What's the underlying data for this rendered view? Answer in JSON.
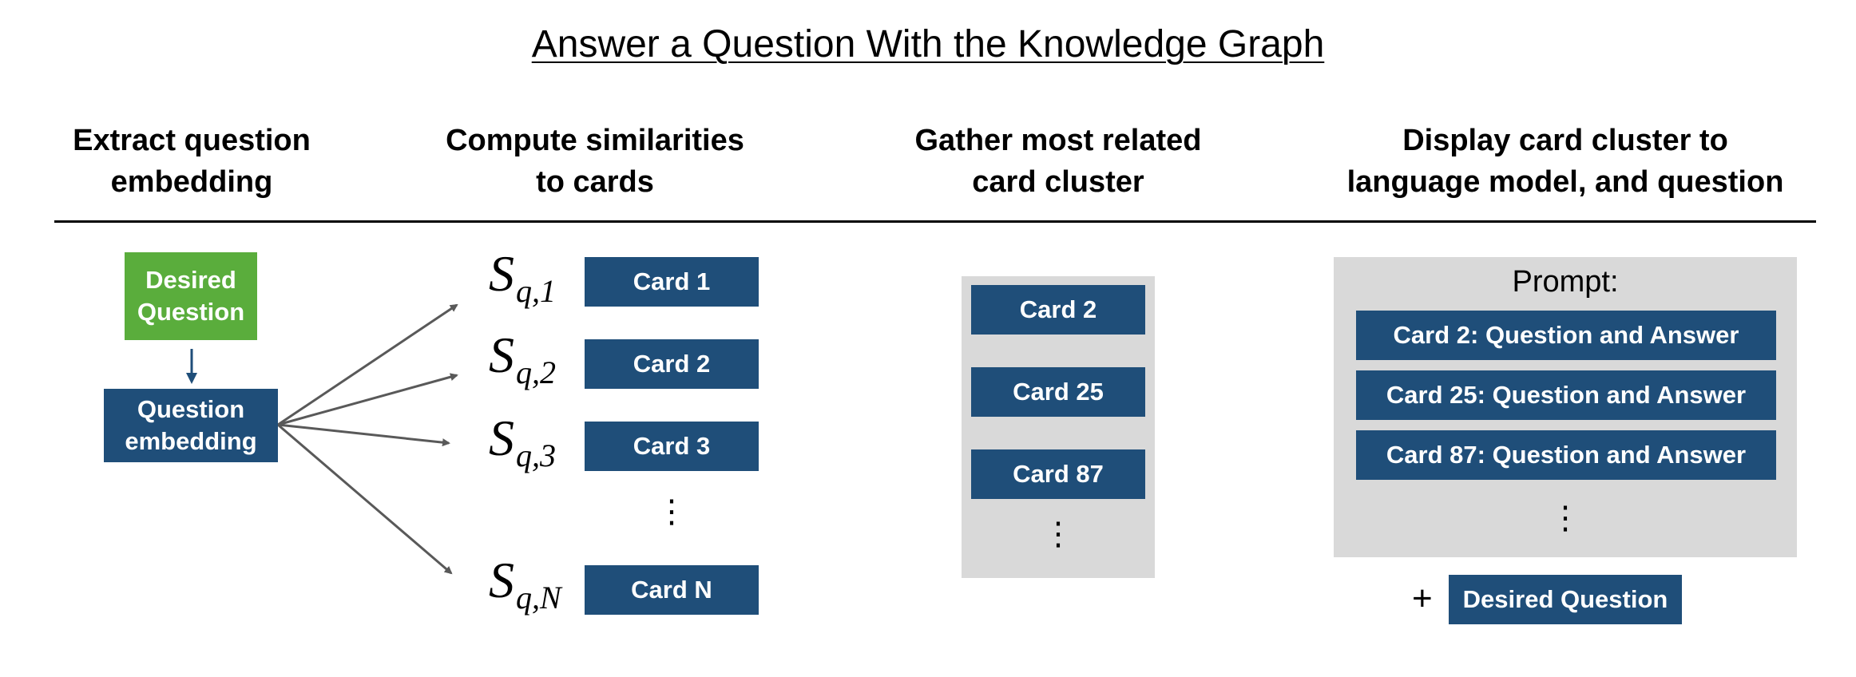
{
  "title": "Answer a Question With the Knowledge Graph",
  "columns": [
    {
      "line1": "Extract question",
      "line2": "embedding"
    },
    {
      "line1": "Compute similarities",
      "line2": "to cards"
    },
    {
      "line1": "Gather most related",
      "line2": "card cluster"
    },
    {
      "line1": "Display card cluster to",
      "line2": "language model, and question"
    }
  ],
  "step1": {
    "desired_line1": "Desired",
    "desired_line2": "Question",
    "embedding_line1": "Question",
    "embedding_line2": "embedding"
  },
  "step2": {
    "similarities": [
      {
        "symbol": "S",
        "subscript": "q,1",
        "card": "Card 1"
      },
      {
        "symbol": "S",
        "subscript": "q,2",
        "card": "Card 2"
      },
      {
        "symbol": "S",
        "subscript": "q,3",
        "card": "Card 3"
      },
      {
        "symbol": "S",
        "subscript": "q,N",
        "card": "Card N"
      }
    ]
  },
  "step3": {
    "cluster": [
      "Card 2",
      "Card 25",
      "Card 87"
    ]
  },
  "step4": {
    "prompt_label": "Prompt:",
    "items": [
      "Card 2: Question and Answer",
      "Card 25: Question and Answer",
      "Card 87: Question and Answer"
    ],
    "plus": "+",
    "question": "Desired Question"
  },
  "colors": {
    "card_blue": "#1f4e79",
    "question_green": "#5aad3c",
    "panel_gray": "#d9d9d9",
    "arrow_gray": "#595959"
  }
}
